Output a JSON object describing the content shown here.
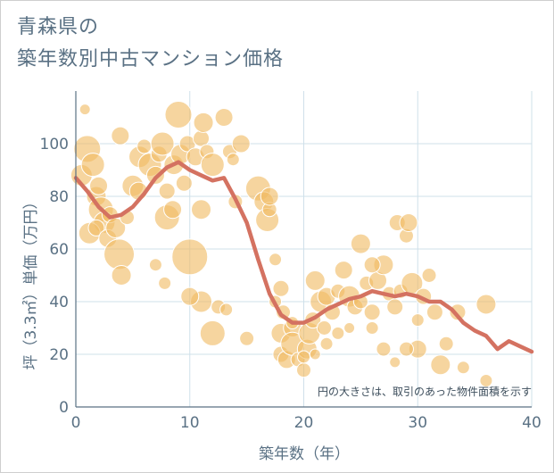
{
  "title_line1": "青森県の",
  "title_line2": "築年数別中古マンション価格",
  "chart_data": {
    "type": "scatter",
    "xlabel": "築年数（年）",
    "ylabel": "坪（3.3㎡）単価（万円）",
    "xlim": [
      0,
      40
    ],
    "ylim": [
      0,
      120
    ],
    "xticks": [
      "0",
      "10",
      "20",
      "30",
      "40"
    ],
    "yticks": [
      "0",
      "20",
      "40",
      "60",
      "80",
      "100"
    ],
    "grid": true,
    "annotation": "円の大きさは、取引のあった物件面積を示す",
    "colors": {
      "bubble": "#f0bc64",
      "line": "#d47261",
      "grid": "#cfe0ea",
      "axis": "#5a7184"
    },
    "trend_line": {
      "x": [
        0,
        1,
        2,
        3,
        4,
        5,
        6,
        7,
        8,
        9,
        10,
        11,
        12,
        13,
        14,
        15,
        16,
        17,
        18,
        19,
        20,
        21,
        22,
        23,
        24,
        25,
        26,
        27,
        28,
        29,
        30,
        31,
        32,
        33,
        34,
        35,
        36,
        37,
        38,
        39,
        40
      ],
      "y": [
        87,
        82,
        76,
        72,
        73,
        76,
        81,
        87,
        91,
        93,
        90,
        88,
        86,
        87,
        79,
        70,
        56,
        43,
        35,
        32,
        32,
        34,
        37,
        39,
        41,
        42,
        44,
        43,
        42,
        43,
        42,
        40,
        40,
        37,
        32,
        29,
        27,
        22,
        25,
        23,
        21
      ]
    },
    "bubbles": [
      {
        "x": 0.5,
        "y": 88,
        "s": 12
      },
      {
        "x": 1,
        "y": 98,
        "s": 15
      },
      {
        "x": 0.8,
        "y": 113,
        "s": 6
      },
      {
        "x": 1.5,
        "y": 92,
        "s": 13
      },
      {
        "x": 1.8,
        "y": 80,
        "s": 11
      },
      {
        "x": 2,
        "y": 84,
        "s": 10
      },
      {
        "x": 2.2,
        "y": 75,
        "s": 14
      },
      {
        "x": 2.5,
        "y": 70,
        "s": 12
      },
      {
        "x": 1.2,
        "y": 66,
        "s": 12
      },
      {
        "x": 1.8,
        "y": 68,
        "s": 9
      },
      {
        "x": 2.8,
        "y": 64,
        "s": 10
      },
      {
        "x": 3,
        "y": 73,
        "s": 9
      },
      {
        "x": 3.5,
        "y": 68,
        "s": 11
      },
      {
        "x": 3.8,
        "y": 58,
        "s": 17
      },
      {
        "x": 4,
        "y": 50,
        "s": 11
      },
      {
        "x": 3.9,
        "y": 103,
        "s": 10
      },
      {
        "x": 4.5,
        "y": 72,
        "s": 8
      },
      {
        "x": 5,
        "y": 84,
        "s": 12
      },
      {
        "x": 5.5,
        "y": 82,
        "s": 10
      },
      {
        "x": 5.6,
        "y": 95,
        "s": 12
      },
      {
        "x": 6,
        "y": 99,
        "s": 8
      },
      {
        "x": 6.5,
        "y": 92,
        "s": 13
      },
      {
        "x": 7,
        "y": 88,
        "s": 10
      },
      {
        "x": 7.3,
        "y": 96,
        "s": 9
      },
      {
        "x": 7.6,
        "y": 100,
        "s": 13
      },
      {
        "x": 8,
        "y": 82,
        "s": 9
      },
      {
        "x": 8,
        "y": 72,
        "s": 14
      },
      {
        "x": 8.5,
        "y": 75,
        "s": 10
      },
      {
        "x": 8.6,
        "y": 92,
        "s": 11
      },
      {
        "x": 9,
        "y": 111,
        "s": 15
      },
      {
        "x": 9.2,
        "y": 96,
        "s": 11
      },
      {
        "x": 9.5,
        "y": 85,
        "s": 9
      },
      {
        "x": 10,
        "y": 57,
        "s": 20
      },
      {
        "x": 9.8,
        "y": 100,
        "s": 9
      },
      {
        "x": 10.5,
        "y": 95,
        "s": 10
      },
      {
        "x": 11,
        "y": 102,
        "s": 9
      },
      {
        "x": 11.2,
        "y": 108,
        "s": 11
      },
      {
        "x": 11.5,
        "y": 97,
        "s": 8
      },
      {
        "x": 12,
        "y": 92,
        "s": 13
      },
      {
        "x": 11,
        "y": 40,
        "s": 12
      },
      {
        "x": 10,
        "y": 42,
        "s": 10
      },
      {
        "x": 11,
        "y": 75,
        "s": 11
      },
      {
        "x": 12,
        "y": 28,
        "s": 14
      },
      {
        "x": 12.5,
        "y": 38,
        "s": 8
      },
      {
        "x": 13,
        "y": 110,
        "s": 10
      },
      {
        "x": 13.5,
        "y": 97,
        "s": 8
      },
      {
        "x": 13.2,
        "y": 37,
        "s": 7
      },
      {
        "x": 13.8,
        "y": 94,
        "s": 7
      },
      {
        "x": 14,
        "y": 78,
        "s": 8
      },
      {
        "x": 14.5,
        "y": 100,
        "s": 10
      },
      {
        "x": 7,
        "y": 54,
        "s": 7
      },
      {
        "x": 7.8,
        "y": 47,
        "s": 7
      },
      {
        "x": 15,
        "y": 26,
        "s": 8
      },
      {
        "x": 16,
        "y": 83,
        "s": 14
      },
      {
        "x": 16.5,
        "y": 78,
        "s": 11
      },
      {
        "x": 16.8,
        "y": 71,
        "s": 13
      },
      {
        "x": 17,
        "y": 75,
        "s": 8
      },
      {
        "x": 17,
        "y": 80,
        "s": 10
      },
      {
        "x": 17.5,
        "y": 56,
        "s": 7
      },
      {
        "x": 17.5,
        "y": 40,
        "s": 7
      },
      {
        "x": 18,
        "y": 45,
        "s": 9
      },
      {
        "x": 18.2,
        "y": 36,
        "s": 8
      },
      {
        "x": 18,
        "y": 28,
        "s": 11
      },
      {
        "x": 18,
        "y": 20,
        "s": 9
      },
      {
        "x": 18.5,
        "y": 18,
        "s": 10
      },
      {
        "x": 19,
        "y": 30,
        "s": 10
      },
      {
        "x": 19,
        "y": 24,
        "s": 13
      },
      {
        "x": 19.5,
        "y": 18,
        "s": 8
      },
      {
        "x": 20,
        "y": 14,
        "s": 8
      },
      {
        "x": 20.3,
        "y": 22,
        "s": 11
      },
      {
        "x": 20.5,
        "y": 28,
        "s": 12
      },
      {
        "x": 20.8,
        "y": 33,
        "s": 9
      },
      {
        "x": 21,
        "y": 48,
        "s": 11
      },
      {
        "x": 21.5,
        "y": 40,
        "s": 12
      },
      {
        "x": 21.8,
        "y": 30,
        "s": 8
      },
      {
        "x": 22,
        "y": 42,
        "s": 10
      },
      {
        "x": 22.5,
        "y": 36,
        "s": 9
      },
      {
        "x": 23,
        "y": 44,
        "s": 8
      },
      {
        "x": 23.5,
        "y": 52,
        "s": 10
      },
      {
        "x": 24,
        "y": 42,
        "s": 12
      },
      {
        "x": 24.5,
        "y": 38,
        "s": 9
      },
      {
        "x": 25,
        "y": 62,
        "s": 11
      },
      {
        "x": 25.5,
        "y": 47,
        "s": 8
      },
      {
        "x": 26,
        "y": 36,
        "s": 9
      },
      {
        "x": 26.5,
        "y": 48,
        "s": 10
      },
      {
        "x": 27,
        "y": 54,
        "s": 11
      },
      {
        "x": 27.5,
        "y": 43,
        "s": 8
      },
      {
        "x": 28,
        "y": 38,
        "s": 9
      },
      {
        "x": 28.2,
        "y": 70,
        "s": 9
      },
      {
        "x": 28.5,
        "y": 44,
        "s": 8
      },
      {
        "x": 29,
        "y": 65,
        "s": 8
      },
      {
        "x": 29.2,
        "y": 70,
        "s": 10
      },
      {
        "x": 29.5,
        "y": 47,
        "s": 12
      },
      {
        "x": 30,
        "y": 22,
        "s": 10
      },
      {
        "x": 30.5,
        "y": 42,
        "s": 9
      },
      {
        "x": 31,
        "y": 50,
        "s": 8
      },
      {
        "x": 31.5,
        "y": 36,
        "s": 9
      },
      {
        "x": 32,
        "y": 16,
        "s": 11
      },
      {
        "x": 32.5,
        "y": 24,
        "s": 8
      },
      {
        "x": 33.5,
        "y": 36,
        "s": 9
      },
      {
        "x": 34,
        "y": 15,
        "s": 7
      },
      {
        "x": 36,
        "y": 39,
        "s": 11
      },
      {
        "x": 36,
        "y": 10,
        "s": 7
      },
      {
        "x": 29,
        "y": 22,
        "s": 8
      },
      {
        "x": 27,
        "y": 22,
        "s": 8
      },
      {
        "x": 26,
        "y": 30,
        "s": 7
      },
      {
        "x": 23,
        "y": 28,
        "s": 7
      },
      {
        "x": 25,
        "y": 40,
        "s": 8
      },
      {
        "x": 22,
        "y": 24,
        "s": 7
      },
      {
        "x": 28,
        "y": 17,
        "s": 6
      },
      {
        "x": 20,
        "y": 19,
        "s": 7
      },
      {
        "x": 21,
        "y": 20,
        "s": 6
      },
      {
        "x": 19,
        "y": 32,
        "s": 7
      },
      {
        "x": 24,
        "y": 30,
        "s": 6
      },
      {
        "x": 26,
        "y": 54,
        "s": 9
      },
      {
        "x": 30,
        "y": 33,
        "s": 7
      }
    ]
  }
}
